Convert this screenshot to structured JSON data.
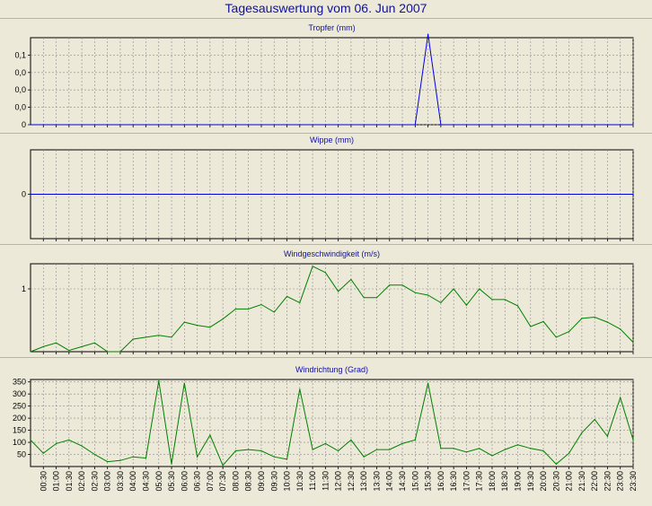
{
  "page": {
    "title": "Tagesauswertung vom 06. Jun 2007"
  },
  "colors": {
    "background": "#ECE9D8",
    "title": "#1010A0",
    "series_blue": "#0000DD",
    "series_green": "#008000",
    "grid": "#8A8A8A"
  },
  "time_labels": [
    "00:30",
    "01:00",
    "01:30",
    "02:00",
    "02:30",
    "03:00",
    "03:30",
    "04:00",
    "04:30",
    "05:00",
    "05:30",
    "06:00",
    "06:30",
    "07:00",
    "07:30",
    "08:00",
    "08:30",
    "09:00",
    "09:30",
    "10:00",
    "10:30",
    "11:00",
    "11:30",
    "12:00",
    "12:30",
    "13:00",
    "13:30",
    "14:00",
    "14:30",
    "15:00",
    "15:30",
    "16:00",
    "16:30",
    "17:00",
    "17:30",
    "18:00",
    "18:30",
    "19:00",
    "19:30",
    "20:00",
    "20:30",
    "21:00",
    "21:30",
    "22:00",
    "22:30",
    "23:00",
    "23:30"
  ],
  "chart_data": [
    {
      "type": "line",
      "title": "Tropfer (mm)",
      "ylim": [
        0,
        0.125
      ],
      "yticks": [
        0,
        0.025,
        0.05,
        0.075,
        0.1
      ],
      "ytick_labels": [
        "0",
        "0,0",
        "0,0",
        "0,0",
        "0,1"
      ],
      "grid": true,
      "color": "#0000DD",
      "x": [
        "00:00",
        "00:30",
        "01:00",
        "01:30",
        "02:00",
        "02:30",
        "03:00",
        "03:30",
        "04:00",
        "04:30",
        "05:00",
        "05:30",
        "06:00",
        "06:30",
        "07:00",
        "07:30",
        "08:00",
        "08:30",
        "09:00",
        "09:30",
        "10:00",
        "10:30",
        "11:00",
        "11:30",
        "12:00",
        "12:30",
        "13:00",
        "13:30",
        "14:00",
        "14:30",
        "15:00",
        "15:30",
        "16:00",
        "16:30",
        "17:00",
        "17:30",
        "18:00",
        "18:30",
        "19:00",
        "19:30",
        "20:00",
        "20:30",
        "21:00",
        "21:30",
        "22:00",
        "22:30",
        "23:00",
        "23:30"
      ],
      "values": [
        0,
        0,
        0,
        0,
        0,
        0,
        0,
        0,
        0,
        0,
        0,
        0,
        0,
        0,
        0,
        0,
        0,
        0,
        0,
        0,
        0,
        0,
        0,
        0,
        0,
        0,
        0,
        0,
        0,
        0,
        0,
        0.13,
        0,
        0,
        0,
        0,
        0,
        0,
        0,
        0,
        0,
        0,
        0,
        0,
        0,
        0,
        0,
        0
      ]
    },
    {
      "type": "line",
      "title": "Wippe (mm)",
      "ylim": [
        -1,
        1
      ],
      "yticks": [
        0
      ],
      "ytick_labels": [
        "0"
      ],
      "grid": true,
      "color": "#0000DD",
      "x": [
        "00:00",
        "23:30"
      ],
      "values": [
        0,
        0
      ]
    },
    {
      "type": "line",
      "title": "Windgeschwindigkeit (m/s)",
      "ylim": [
        0,
        1.4
      ],
      "yticks": [
        1
      ],
      "ytick_labels": [
        "1"
      ],
      "grid": true,
      "color": "#008000",
      "x": [
        "00:00",
        "00:30",
        "01:00",
        "01:30",
        "02:00",
        "02:30",
        "03:00",
        "03:30",
        "04:00",
        "04:30",
        "05:00",
        "05:30",
        "06:00",
        "06:30",
        "07:00",
        "07:30",
        "08:00",
        "08:30",
        "09:00",
        "09:30",
        "10:00",
        "10:30",
        "11:00",
        "11:30",
        "12:00",
        "12:30",
        "13:00",
        "13:30",
        "14:00",
        "14:30",
        "15:00",
        "15:30",
        "16:00",
        "16:30",
        "17:00",
        "17:30",
        "18:00",
        "18:30",
        "19:00",
        "19:30",
        "20:00",
        "20:30",
        "21:00",
        "21:30",
        "22:00",
        "22:30",
        "23:00",
        "23:30"
      ],
      "values": [
        0.0,
        0.08,
        0.14,
        0.02,
        0.08,
        0.14,
        0.0,
        0.0,
        0.2,
        0.23,
        0.26,
        0.23,
        0.47,
        0.42,
        0.39,
        0.52,
        0.68,
        0.68,
        0.75,
        0.63,
        0.88,
        0.78,
        1.36,
        1.26,
        0.96,
        1.15,
        0.86,
        0.86,
        1.06,
        1.06,
        0.94,
        0.9,
        0.78,
        1.0,
        0.74,
        1.0,
        0.83,
        0.83,
        0.73,
        0.4,
        0.48,
        0.23,
        0.32,
        0.53,
        0.55,
        0.47,
        0.36,
        0.15
      ]
    },
    {
      "type": "line",
      "title": "Windrichtung (Grad)",
      "ylim": [
        0,
        360
      ],
      "yticks": [
        50,
        100,
        150,
        200,
        250,
        300,
        350
      ],
      "ytick_labels": [
        "50",
        "100",
        "150",
        "200",
        "250",
        "300",
        "350"
      ],
      "grid": true,
      "color": "#008000",
      "x": [
        "00:00",
        "00:30",
        "01:00",
        "01:30",
        "02:00",
        "02:30",
        "03:00",
        "03:30",
        "04:00",
        "04:30",
        "05:00",
        "05:30",
        "06:00",
        "06:30",
        "07:00",
        "07:30",
        "08:00",
        "08:30",
        "09:00",
        "09:30",
        "10:00",
        "10:30",
        "11:00",
        "11:30",
        "12:00",
        "12:30",
        "13:00",
        "13:30",
        "14:00",
        "14:30",
        "15:00",
        "15:30",
        "16:00",
        "16:30",
        "17:00",
        "17:30",
        "18:00",
        "18:30",
        "19:00",
        "19:30",
        "20:00",
        "20:30",
        "21:00",
        "21:30",
        "22:00",
        "22:30",
        "23:00",
        "23:30"
      ],
      "values": [
        110,
        55,
        95,
        110,
        85,
        50,
        20,
        25,
        40,
        35,
        355,
        10,
        345,
        40,
        130,
        5,
        65,
        70,
        65,
        40,
        30,
        320,
        70,
        95,
        65,
        110,
        40,
        70,
        70,
        95,
        110,
        345,
        75,
        75,
        60,
        75,
        45,
        70,
        90,
        75,
        65,
        10,
        55,
        140,
        195,
        125,
        285,
        110
      ]
    }
  ]
}
